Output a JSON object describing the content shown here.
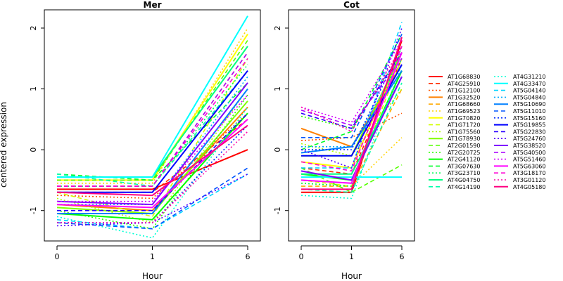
{
  "chart_data": {
    "type": "line",
    "xlabel": "Hour",
    "ylabel": "centered expression",
    "x": [
      "0",
      "1",
      "6"
    ],
    "ylim": [
      -1.5,
      2.3
    ],
    "yticks": [
      -1,
      0,
      1,
      2
    ],
    "grid": false,
    "legend_position": "right",
    "legend": [
      {
        "name": "AT1G68830",
        "color": "#FF0000",
        "dash": "solid"
      },
      {
        "name": "AT4G25910",
        "color": "#FF2A00",
        "dash": "dashed"
      },
      {
        "name": "AT1G12100",
        "color": "#FF5500",
        "dash": "dotted"
      },
      {
        "name": "AT1G32520",
        "color": "#FF8000",
        "dash": "solid"
      },
      {
        "name": "AT1G68660",
        "color": "#FFAA00",
        "dash": "dashed"
      },
      {
        "name": "AT1G69523",
        "color": "#FFD400",
        "dash": "dotted"
      },
      {
        "name": "AT1G70820",
        "color": "#FFFF00",
        "dash": "solid"
      },
      {
        "name": "AT1G71720",
        "color": "#D4FF00",
        "dash": "dashed"
      },
      {
        "name": "AT1G75560",
        "color": "#AAFF00",
        "dash": "dotted"
      },
      {
        "name": "AT1G78930",
        "color": "#80FF00",
        "dash": "solid"
      },
      {
        "name": "AT2G01590",
        "color": "#55FF00",
        "dash": "dashed"
      },
      {
        "name": "AT2G20725",
        "color": "#2AFF00",
        "dash": "dotted"
      },
      {
        "name": "AT2G41120",
        "color": "#00FF00",
        "dash": "solid"
      },
      {
        "name": "AT3G07630",
        "color": "#00FF2A",
        "dash": "dashed"
      },
      {
        "name": "AT3G23710",
        "color": "#00FF55",
        "dash": "dotted"
      },
      {
        "name": "AT4G04750",
        "color": "#00FF80",
        "dash": "solid"
      },
      {
        "name": "AT4G14190",
        "color": "#00FFAA",
        "dash": "dashed"
      },
      {
        "name": "AT4G31210",
        "color": "#00FFD4",
        "dash": "dotted"
      },
      {
        "name": "AT4G33470",
        "color": "#00FFFF",
        "dash": "solid"
      },
      {
        "name": "AT5G04140",
        "color": "#00D4FF",
        "dash": "dashed"
      },
      {
        "name": "AT5G04840",
        "color": "#00AAFF",
        "dash": "dotted"
      },
      {
        "name": "AT5G10690",
        "color": "#0080FF",
        "dash": "solid"
      },
      {
        "name": "AT5G11010",
        "color": "#0055FF",
        "dash": "dashed"
      },
      {
        "name": "AT5G15160",
        "color": "#002AFF",
        "dash": "dotted"
      },
      {
        "name": "AT5G19855",
        "color": "#0000FF",
        "dash": "solid"
      },
      {
        "name": "AT5G22830",
        "color": "#2A00FF",
        "dash": "dashed"
      },
      {
        "name": "AT5G24760",
        "color": "#5500FF",
        "dash": "dotted"
      },
      {
        "name": "AT5G38520",
        "color": "#8000FF",
        "dash": "solid"
      },
      {
        "name": "AT5G40500",
        "color": "#AA00FF",
        "dash": "dashed"
      },
      {
        "name": "AT5G51460",
        "color": "#D400FF",
        "dash": "dotted"
      },
      {
        "name": "AT5G63060",
        "color": "#FF00FF",
        "dash": "solid"
      },
      {
        "name": "AT3G18170",
        "color": "#FF00D4",
        "dash": "dashed"
      },
      {
        "name": "AT3G01120",
        "color": "#FF00AA",
        "dash": "dotted"
      },
      {
        "name": "AT4G05180",
        "color": "#FF0080",
        "dash": "solid"
      }
    ],
    "panels": [
      {
        "title": "Mer",
        "series": [
          {
            "values": [
              -0.65,
              -0.65,
              0.0
            ]
          },
          {
            "values": [
              -0.7,
              -0.7,
              0.5
            ]
          },
          {
            "values": [
              -0.75,
              -0.8,
              0.6
            ]
          },
          {
            "values": [
              -0.9,
              -1.0,
              0.7
            ]
          },
          {
            "values": [
              -0.6,
              -0.6,
              1.6
            ]
          },
          {
            "values": [
              -0.55,
              -0.55,
              2.0
            ]
          },
          {
            "values": [
              -0.5,
              -0.5,
              1.9
            ]
          },
          {
            "values": [
              -0.7,
              -1.1,
              1.5
            ]
          },
          {
            "values": [
              -0.8,
              -1.2,
              1.0
            ]
          },
          {
            "values": [
              -0.95,
              -1.05,
              0.8
            ]
          },
          {
            "values": [
              -0.5,
              -0.5,
              1.8
            ]
          },
          {
            "values": [
              -1.0,
              -1.3,
              0.9
            ]
          },
          {
            "values": [
              -1.05,
              -1.15,
              0.6
            ]
          },
          {
            "values": [
              -0.4,
              -0.5,
              1.1
            ]
          },
          {
            "values": [
              -0.6,
              -0.6,
              1.4
            ]
          },
          {
            "values": [
              -0.45,
              -0.45,
              1.7
            ]
          },
          {
            "values": [
              -0.4,
              -0.6,
              1.3
            ]
          },
          {
            "values": [
              -1.1,
              -1.45,
              0.7
            ]
          },
          {
            "values": [
              -0.45,
              -0.45,
              2.2
            ]
          },
          {
            "values": [
              -1.15,
              -1.3,
              -0.4
            ]
          },
          {
            "values": [
              -0.9,
              -0.9,
              1.2
            ]
          },
          {
            "values": [
              -1.05,
              -1.05,
              1.0
            ]
          },
          {
            "values": [
              -1.2,
              -1.3,
              -0.3
            ]
          },
          {
            "values": [
              -1.2,
              -1.2,
              0.4
            ]
          },
          {
            "values": [
              -0.7,
              -0.7,
              1.3
            ]
          },
          {
            "values": [
              -1.0,
              -1.0,
              0.6
            ]
          },
          {
            "values": [
              -1.25,
              -1.2,
              -0.4
            ]
          },
          {
            "values": [
              -0.85,
              -0.9,
              1.1
            ]
          },
          {
            "values": [
              -0.6,
              -0.6,
              1.6
            ]
          },
          {
            "values": [
              -0.85,
              -0.85,
              0.9
            ]
          },
          {
            "values": [
              -0.9,
              -0.95,
              0.5
            ]
          },
          {
            "values": [
              -0.6,
              -0.6,
              1.5
            ]
          },
          {
            "values": [
              -1.2,
              -1.2,
              0.3
            ]
          },
          {
            "values": [
              -0.7,
              -0.75,
              0.4
            ]
          }
        ]
      },
      {
        "title": "Cot",
        "series": [
          {
            "values": [
              -0.7,
              -0.7,
              1.8
            ]
          },
          {
            "values": [
              -0.3,
              -0.4,
              1.5
            ]
          },
          {
            "values": [
              0.15,
              0.2,
              0.6
            ]
          },
          {
            "values": [
              0.35,
              0.05,
              1.4
            ]
          },
          {
            "values": [
              -0.6,
              -0.6,
              1.0
            ]
          },
          {
            "values": [
              -0.55,
              -0.6,
              0.2
            ]
          },
          {
            "values": [
              -0.2,
              -0.3,
              1.6
            ]
          },
          {
            "values": [
              -0.5,
              -0.6,
              1.5
            ]
          },
          {
            "values": [
              0.1,
              -0.1,
              1.0
            ]
          },
          {
            "values": [
              -0.1,
              -0.1,
              1.6
            ]
          },
          {
            "values": [
              -0.3,
              -0.7,
              -0.25
            ]
          },
          {
            "values": [
              0.55,
              0.35,
              1.6
            ]
          },
          {
            "values": [
              -0.4,
              -0.5,
              1.3
            ]
          },
          {
            "values": [
              0.0,
              0.3,
              1.9
            ]
          },
          {
            "values": [
              -0.55,
              -0.6,
              1.7
            ]
          },
          {
            "values": [
              -0.4,
              -0.4,
              1.2
            ]
          },
          {
            "values": [
              -0.65,
              -0.7,
              1.1
            ]
          },
          {
            "values": [
              -0.75,
              -0.8,
              1.4
            ]
          },
          {
            "values": [
              -0.45,
              -0.45,
              -0.45
            ]
          },
          {
            "values": [
              -0.3,
              -0.3,
              2.1
            ]
          },
          {
            "values": [
              0.05,
              0.05,
              1.5
            ]
          },
          {
            "values": [
              -0.05,
              0.05,
              1.3
            ]
          },
          {
            "values": [
              0.2,
              0.2,
              1.9
            ]
          },
          {
            "values": [
              0.0,
              0.0,
              1.7
            ]
          },
          {
            "values": [
              -0.1,
              -0.1,
              1.4
            ]
          },
          {
            "values": [
              0.6,
              0.35,
              1.6
            ]
          },
          {
            "values": [
              0.0,
              -0.3,
              2.0
            ]
          },
          {
            "values": [
              -0.35,
              -0.5,
              1.2
            ]
          },
          {
            "values": [
              0.65,
              0.4,
              1.5
            ]
          },
          {
            "values": [
              0.7,
              0.45,
              1.8
            ]
          },
          {
            "values": [
              -0.5,
              -0.55,
              1.6
            ]
          },
          {
            "values": [
              -0.2,
              -0.35,
              1.7
            ]
          },
          {
            "values": [
              0.7,
              0.3,
              1.7
            ]
          },
          {
            "values": [
              -0.65,
              -0.65,
              1.85
            ]
          }
        ]
      }
    ]
  }
}
